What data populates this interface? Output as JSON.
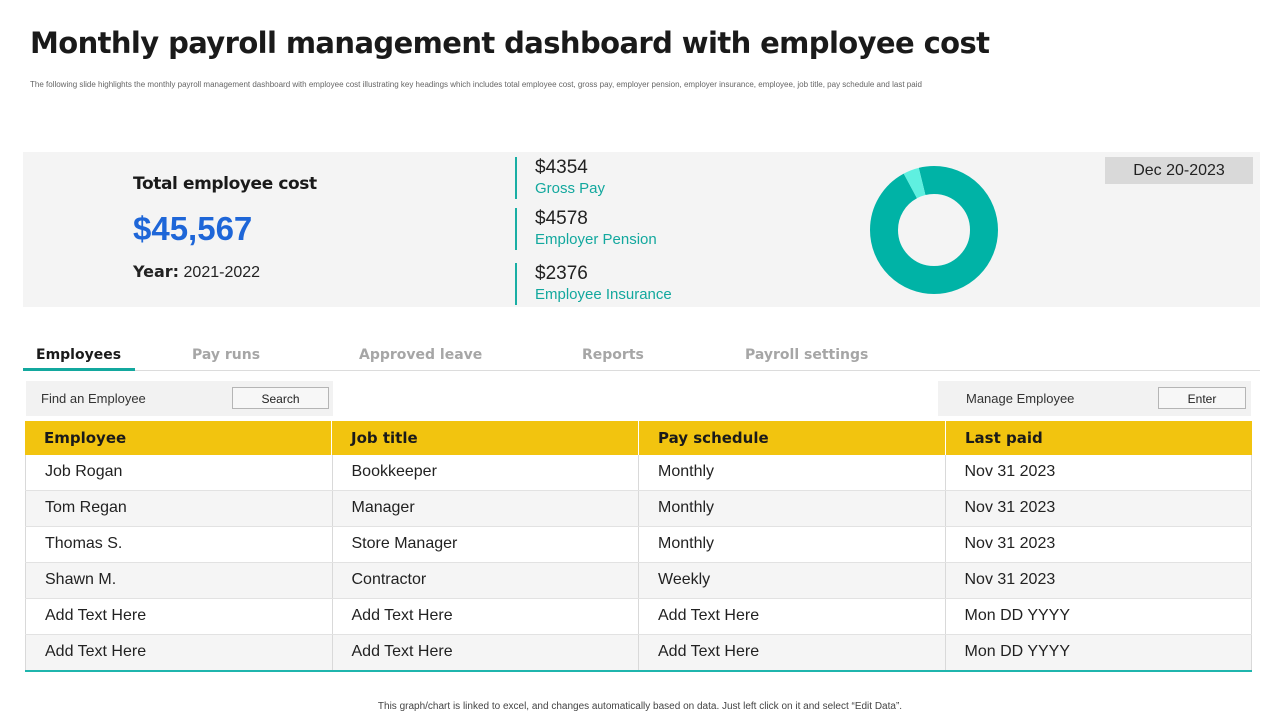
{
  "header": {
    "title": "Monthly payroll management dashboard with employee cost",
    "subtitle": "The  following slide highlights  the monthly payroll management dashboard  with employee cost illustrating key headings which includes total employee cost, gross pay, employer pension, employer insurance, employee, job title, pay schedule and last paid"
  },
  "summary": {
    "total_label": "Total employee cost",
    "total_value": "$45,567",
    "year_label": "Year:",
    "year_value": "2021-2022",
    "date": "Dec 20-2023",
    "metrics": [
      {
        "value": "$4354",
        "label": "Gross Pay"
      },
      {
        "value": "$4578",
        "label": "Employer Pension"
      },
      {
        "value": "$2376",
        "label": "Employee Insurance"
      }
    ]
  },
  "chart_data": {
    "type": "pie",
    "style": "donut",
    "values": [
      96,
      4
    ],
    "colors": [
      "#00b3a6",
      "#5ff0e0"
    ]
  },
  "tabs": [
    {
      "label": "Employees",
      "active": true
    },
    {
      "label": "Pay runs",
      "active": false
    },
    {
      "label": "Approved leave",
      "active": false
    },
    {
      "label": "Reports",
      "active": false
    },
    {
      "label": "Payroll settings",
      "active": false
    }
  ],
  "toolbar": {
    "find_label": "Find an Employee",
    "search_button": "Search",
    "manage_label": "Manage Employee",
    "enter_button": "Enter"
  },
  "table": {
    "columns": [
      "Employee",
      "Job title",
      "Pay schedule",
      "Last paid"
    ],
    "rows": [
      [
        "Job Rogan",
        "Bookkeeper",
        "Monthly",
        "Nov 31 2023"
      ],
      [
        "Tom Regan",
        "Manager",
        "Monthly",
        "Nov 31 2023"
      ],
      [
        "Thomas S.",
        "Store Manager",
        "Monthly",
        "Nov 31 2023"
      ],
      [
        "Shawn M.",
        "Contractor",
        "Weekly",
        "Nov 31 2023"
      ],
      [
        "Add Text Here",
        "Add Text Here",
        "Add Text Here",
        "Mon DD YYYY"
      ],
      [
        "Add Text Here",
        "Add Text Here",
        "Add Text Here",
        "Mon DD YYYY"
      ]
    ]
  },
  "footnote": "This graph/chart is linked to excel, and changes automatically based on data. Just left click on it and select “Edit Data”.",
  "colors": {
    "accent_teal": "#13a89e",
    "total_blue": "#1e66d8",
    "header_yellow": "#f2c40f"
  }
}
